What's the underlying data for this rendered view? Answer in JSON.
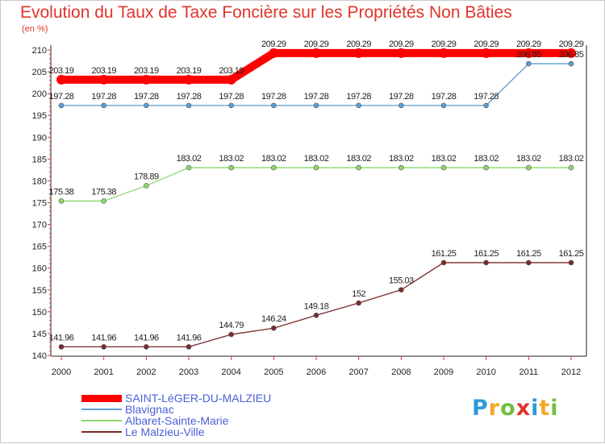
{
  "chart_data": {
    "type": "line",
    "title": "Evolution du Taux de Taxe Foncière sur les Propriétés Non Bâties",
    "ylabel": "(en %)",
    "xlabel": "",
    "ylim": [
      140,
      210
    ],
    "yticks": [
      140,
      145,
      150,
      155,
      160,
      165,
      170,
      175,
      180,
      185,
      190,
      195,
      200,
      205,
      210
    ],
    "categories": [
      "2000",
      "2001",
      "2002",
      "2003",
      "2004",
      "2005",
      "2006",
      "2007",
      "2008",
      "2009",
      "2010",
      "2011",
      "2012"
    ],
    "legend_position": "bottom-left",
    "series": [
      {
        "name": "SAINT-LéGER-DU-MALZIEU",
        "color": "#ff0000",
        "values": [
          203.19,
          203.19,
          203.19,
          203.19,
          203.19,
          209.29,
          209.29,
          209.29,
          209.29,
          209.29,
          209.29,
          209.29,
          209.29
        ],
        "labels": [
          "203.19",
          "203.19",
          "203.19",
          "203.19",
          "203.19",
          "209.29",
          "209.29",
          "209.29",
          "209.29",
          "209.29",
          "209.29",
          "209.29",
          "209.29"
        ]
      },
      {
        "name": "Blavignac",
        "color": "#5a9ed6",
        "values": [
          197.28,
          197.28,
          197.28,
          197.28,
          197.28,
          197.28,
          197.28,
          197.28,
          197.28,
          197.28,
          197.28,
          206.85,
          206.85
        ],
        "labels": [
          "197.28",
          "197.28",
          "197.28",
          "197.28",
          "197.28",
          "197.28",
          "197.28",
          "197.28",
          "197.28",
          "197.28",
          "197.28",
          "206.85",
          "206.85"
        ]
      },
      {
        "name": "Albaret-Sainte-Marie",
        "color": "#8ed86a",
        "values": [
          175.38,
          175.38,
          178.89,
          183.02,
          183.02,
          183.02,
          183.02,
          183.02,
          183.02,
          183.02,
          183.02,
          183.02,
          183.02
        ],
        "labels": [
          "175.38",
          "175.38",
          "178.89",
          "183.02",
          "183.02",
          "183.02",
          "183.02",
          "183.02",
          "183.02",
          "183.02",
          "183.02",
          "183.02",
          "183.02"
        ]
      },
      {
        "name": "Le Malzieu-Ville",
        "color": "#7a2a2a",
        "values": [
          141.96,
          141.96,
          141.96,
          141.96,
          144.79,
          146.24,
          149.18,
          152,
          155.03,
          161.25,
          161.25,
          161.25,
          161.25
        ],
        "labels": [
          "141.96",
          "141.96",
          "141.96",
          "141.96",
          "144.79",
          "146.24",
          "149.18",
          "152",
          "155.03",
          "161.25",
          "161.25",
          "161.25",
          "161.25"
        ]
      }
    ]
  },
  "logo": {
    "letters": [
      "P",
      "r",
      "o",
      "x",
      "i",
      "t",
      "i"
    ],
    "colors": [
      "#2e9ad6",
      "#f5a623",
      "#74c043",
      "#e0342a",
      "#2e9ad6",
      "#f5a623",
      "#74c043"
    ]
  }
}
